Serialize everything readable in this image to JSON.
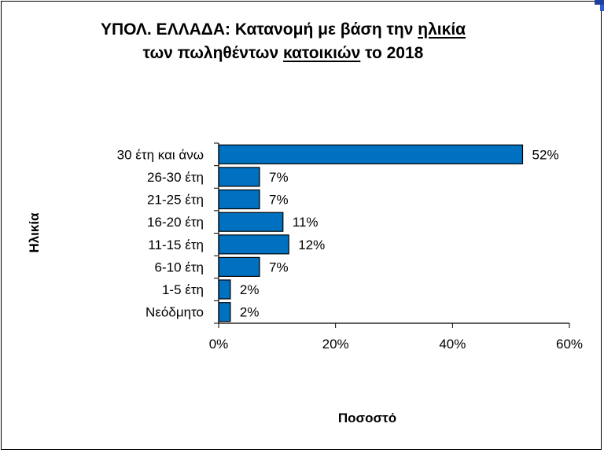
{
  "title": {
    "line1_prefix": "ΥΠΟΛ.  ΕΛΛΑΔΑ:  Κατανομή με βάση την ",
    "line1_underlined": "ηλικία",
    "line2_prefix": "των πωληθέντων ",
    "line2_underlined": "κατοικιών",
    "line2_suffix": " το 2018"
  },
  "chart_data": {
    "type": "bar",
    "orientation": "horizontal",
    "title": "ΥΠΟΛ.  ΕΛΛΑΔΑ:  Κατανομή με βάση την ηλικία των πωληθέντων κατοικιών το 2018",
    "ylabel": "Ηλικία",
    "xlabel": "Ποσοστό",
    "categories": [
      "30 έτη και άνω",
      "26-30 έτη",
      "21-25 έτη",
      "16-20 έτη",
      "11-15 έτη",
      "6-10 έτη",
      "1-5 έτη",
      "Νεόδμητο"
    ],
    "values": [
      52,
      7,
      7,
      11,
      12,
      7,
      2,
      2
    ],
    "value_labels": [
      "52%",
      "7%",
      "7%",
      "11%",
      "12%",
      "7%",
      "2%",
      "2%"
    ],
    "xlim": [
      0,
      60
    ],
    "xticks": [
      0,
      20,
      40,
      60
    ],
    "xtick_labels": [
      "0%",
      "20%",
      "40%",
      "60%"
    ],
    "grid": false,
    "legend": "none",
    "colors": {
      "bar_fill": "#0070C0",
      "bar_stroke": "#000000",
      "axis": "#000000"
    }
  }
}
